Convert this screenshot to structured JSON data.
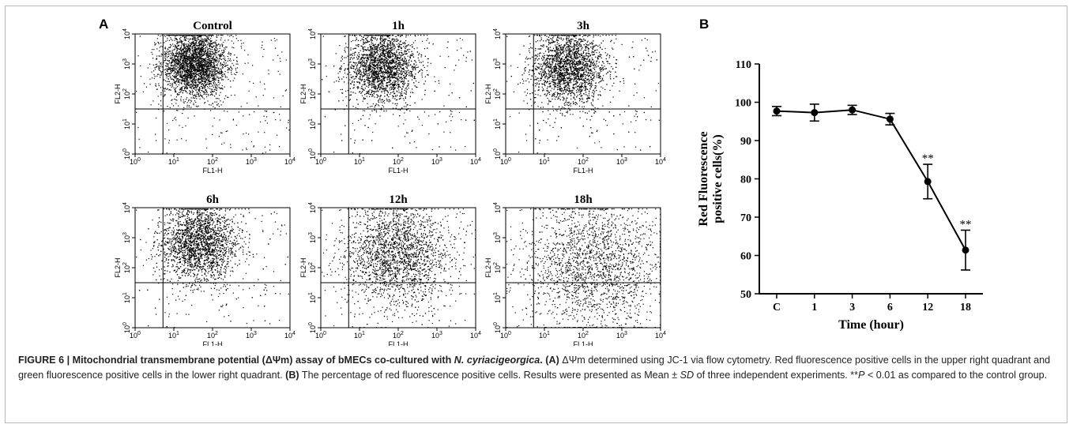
{
  "panel_a": {
    "label": "A",
    "x_axis_label": "FL1-H",
    "y_axis_label": "FL2-H",
    "tick_labels": [
      "10",
      "10",
      "10",
      "10",
      "10"
    ],
    "tick_exponents": [
      "0",
      "1",
      "2",
      "3",
      "4"
    ],
    "plots": [
      {
        "title": "Control",
        "density": 0.95
      },
      {
        "title": "1h",
        "density": 0.92
      },
      {
        "title": "3h",
        "density": 0.9
      },
      {
        "title": "6h",
        "density": 0.88
      },
      {
        "title": "12h",
        "density": 0.72
      },
      {
        "title": "18h",
        "density": 0.55
      }
    ]
  },
  "panel_b": {
    "label": "B"
  },
  "chart_data": {
    "type": "line",
    "categories": [
      "C",
      "1",
      "3",
      "6",
      "12",
      "18"
    ],
    "values": [
      97.7,
      97.3,
      98.0,
      95.6,
      79.3,
      61.4
    ],
    "errors": [
      1.2,
      2.2,
      1.2,
      1.5,
      4.5,
      5.2
    ],
    "annotations": [
      "",
      "",
      "",
      "",
      "**",
      "**"
    ],
    "xlabel": "Time (hour)",
    "ylabel_line1": "Red Fluorescence",
    "ylabel_line2": "positive cells(%)",
    "ylim": [
      50,
      110
    ],
    "yticks": [
      50,
      60,
      70,
      80,
      90,
      100,
      110
    ]
  },
  "caption": {
    "fig_label": "FIGURE 6 | ",
    "title_a": "Mitochondrial transmembrane potential (ΔΨm) assay of bMECs co-cultured with ",
    "title_species": "N. cyriacigeorgica",
    "title_end": ".",
    "ref_a": "(A)",
    "text_a": " ΔΨm determined using JC-1 via flow cytometry. Red fluorescence positive cells in the upper right quadrant and green fluorescence positive cells in the lower right quadrant. ",
    "ref_b": "(B)",
    "text_b": " The percentage of red fluorescence positive cells. Results were presented as Mean ± ",
    "sd": "SD",
    "text_c": " of three independent experiments. **",
    "p": "P",
    "text_d": " < 0.01 as compared to the control group."
  }
}
